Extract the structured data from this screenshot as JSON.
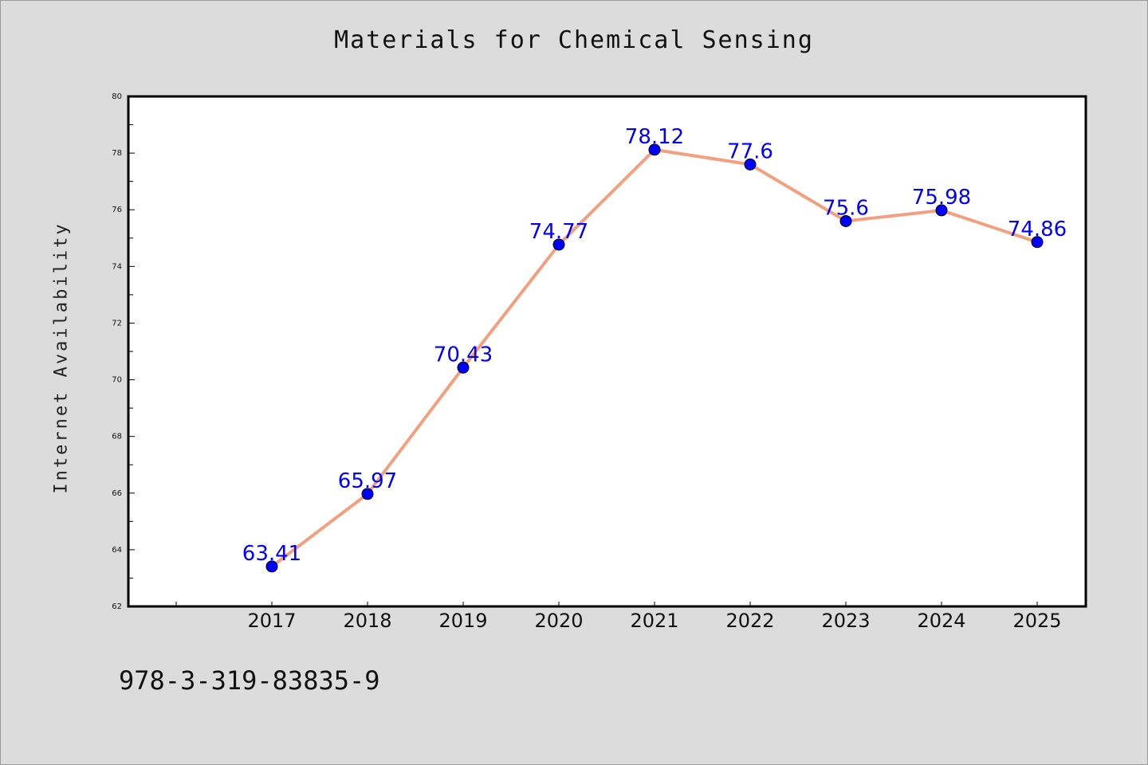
{
  "chart_data": {
    "type": "line",
    "title": "Materials for Chemical Sensing",
    "xlabel": "",
    "ylabel": "Internet Availability",
    "categories": [
      "2017",
      "2018",
      "2019",
      "2020",
      "2021",
      "2022",
      "2023",
      "2024",
      "2025"
    ],
    "series": [
      {
        "values": [
          63.41,
          65.97,
          70.43,
          74.77,
          78.12,
          77.6,
          75.6,
          75.98,
          74.86
        ],
        "labels": [
          "63.41",
          "65.97",
          "70.43",
          "74.77",
          "78.12",
          "77.6",
          "75.6",
          "75.98",
          "74.86"
        ]
      }
    ],
    "ylim": [
      62,
      80
    ],
    "yticks": [
      "62",
      "64",
      "66",
      "68",
      "70",
      "72",
      "74",
      "76",
      "78",
      "80"
    ],
    "grid": false,
    "legend": "none",
    "colors": {
      "line": "#f4a07e",
      "marker": "#0000ff",
      "data_label": "#0000ff",
      "background": "#dcdcdc",
      "plot_background": "#ffffff"
    }
  },
  "footer": {
    "code": "978-3-319-83835-9"
  }
}
